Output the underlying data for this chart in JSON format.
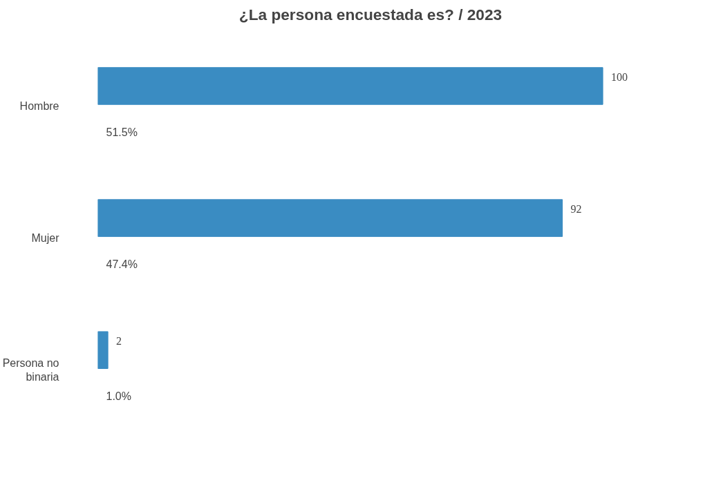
{
  "chart_data": {
    "type": "bar",
    "orientation": "horizontal",
    "title": "¿La persona encuestada es? / 2023",
    "categories": [
      "Hombre",
      "Mujer",
      "Persona no\nbinaria"
    ],
    "series": [
      {
        "color": "#3a8cc2",
        "values": [
          100,
          92,
          2
        ]
      }
    ],
    "data_labels": true,
    "grid": false,
    "tick_labels": "y",
    "annotations": [
      "51.5%",
      "47.4%",
      "1.0%"
    ]
  }
}
